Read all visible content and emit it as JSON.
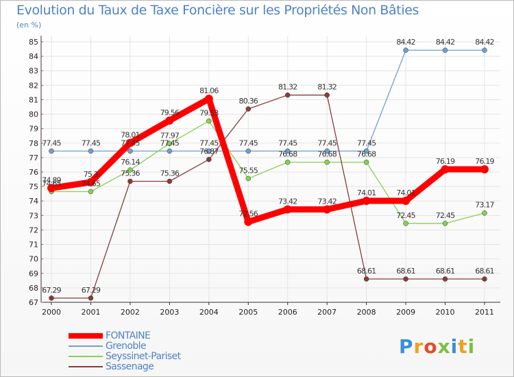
{
  "header": {
    "title": "Evolution du Taux de Taxe Foncière sur les Propriétés Non Bâties",
    "subtitle": "(en %)"
  },
  "logo": {
    "letters": [
      "P",
      "r",
      "o",
      "x",
      "i",
      "t",
      "i"
    ]
  },
  "chart_data": {
    "type": "line",
    "title": "Evolution du Taux de Taxe Foncière sur les Propriétés Non Bâties",
    "ylabel": "(en %)",
    "ylim": [
      67,
      85
    ],
    "categories": [
      "2000",
      "2001",
      "2002",
      "2003",
      "2004",
      "2005",
      "2006",
      "2007",
      "2008",
      "2009",
      "2010",
      "2011"
    ],
    "yticks": [
      "67",
      "68",
      "69",
      "70",
      "71",
      "72",
      "73",
      "74",
      "75",
      "76",
      "77",
      "78",
      "79",
      "80",
      "81",
      "82",
      "83",
      "84",
      "85"
    ],
    "series": [
      {
        "name": "FONTAINE",
        "color": "#ff0000",
        "values": [
          74.89,
          75.3,
          78.01,
          79.56,
          81.06,
          72.56,
          73.42,
          73.42,
          74.01,
          74.01,
          76.19,
          76.19
        ],
        "labels": [
          "74.89",
          "75.3",
          "78.01",
          "79.56",
          "81.06",
          "72.56",
          "73.42",
          "73.42",
          "74.01",
          "74.01",
          "76.19",
          "76.19"
        ]
      },
      {
        "name": "Grenoble",
        "color": "#6fa0d0",
        "values": [
          77.45,
          77.45,
          77.45,
          77.45,
          77.45,
          77.45,
          77.45,
          77.45,
          77.45,
          84.42,
          84.42,
          84.42
        ],
        "labels": [
          "77.45",
          "77.45",
          "77.45",
          "77.45",
          "77.45",
          "77.45",
          "77.45",
          "77.45",
          "77.45",
          "84.42",
          "84.42",
          "84.42"
        ]
      },
      {
        "name": "Seyssinet-Pariset",
        "color": "#88d050",
        "values": [
          74.65,
          74.65,
          76.14,
          77.97,
          79.53,
          75.55,
          76.68,
          76.68,
          76.68,
          72.45,
          72.45,
          73.17
        ],
        "labels": [
          "74.65",
          "74.65",
          "76.14",
          "77.97",
          "79.53",
          "75.55",
          "76.68",
          "76.68",
          "76.68",
          "72.45",
          "72.45",
          "73.17"
        ]
      },
      {
        "name": "Sassenage",
        "color": "#8b3a3a",
        "values": [
          67.29,
          67.29,
          75.36,
          75.36,
          76.87,
          80.36,
          81.32,
          81.32,
          68.61,
          68.61,
          68.61,
          68.61
        ],
        "labels": [
          "67.29",
          "67.29",
          "75.36",
          "75.36",
          "76.87",
          "80.36",
          "81.32",
          "81.32",
          "68.61",
          "68.61",
          "68.61",
          "68.61"
        ]
      }
    ]
  }
}
